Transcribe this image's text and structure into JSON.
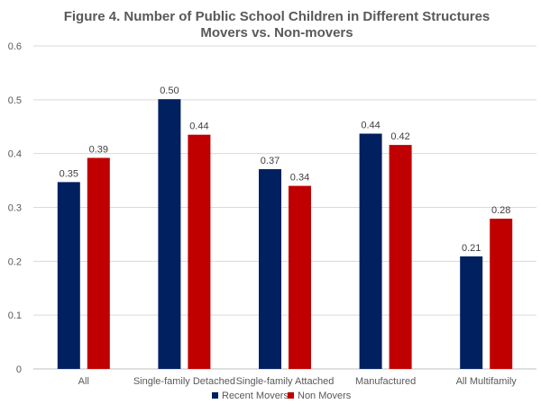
{
  "chart_data": {
    "type": "bar",
    "title_line1": "Figure 4. Number of Public School Children in Different Structures",
    "title_line2": "Movers vs. Non-movers",
    "categories": [
      "All",
      "Single-family Detached",
      "Single-family Attached",
      "Manufactured",
      "All Multifamily"
    ],
    "series": [
      {
        "name": "Recent Movers",
        "values": [
          0.347,
          0.501,
          0.371,
          0.437,
          0.209
        ],
        "labels": [
          "0.35",
          "0.50",
          "0.37",
          "0.44",
          "0.21"
        ],
        "color": "#002060"
      },
      {
        "name": "Non Movers",
        "values": [
          0.392,
          0.435,
          0.34,
          0.416,
          0.279
        ],
        "labels": [
          "0.39",
          "0.44",
          "0.34",
          "0.42",
          "0.28"
        ],
        "color": "#C00000"
      }
    ],
    "yticks": [
      "0",
      "0.1",
      "0.2",
      "0.3",
      "0.4",
      "0.5",
      "0.6"
    ],
    "ylim": [
      0,
      0.6
    ],
    "grid": true,
    "legend_position": "bottom"
  }
}
